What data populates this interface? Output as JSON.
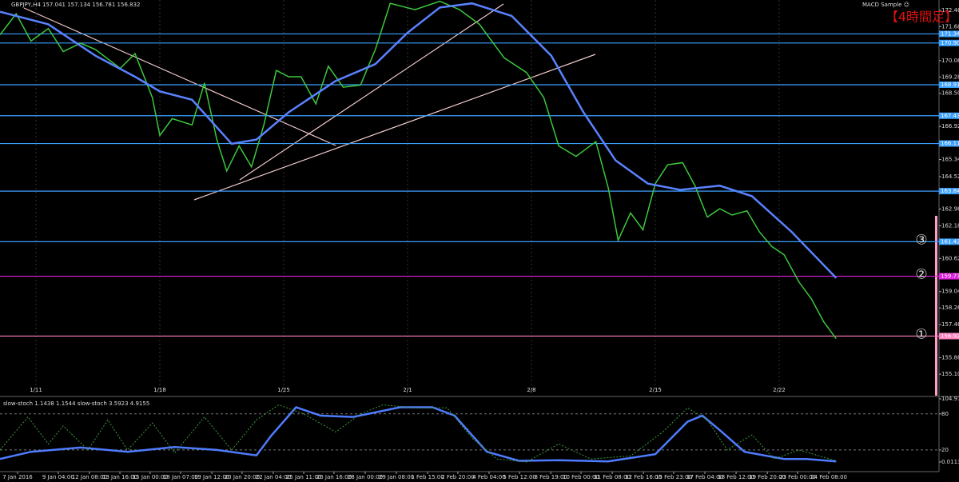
{
  "header": {
    "symbol_info": "GBPJPY,H4 157.041 157.134 156.781 156.832",
    "indicator": "MACD Sample ☺",
    "timeframe": "【4時間足】",
    "stoch_info": "slow-stoch 1.1438 1.1544 slow-stoch 3.5923 4.9155"
  },
  "chart_data": [
    {
      "type": "line",
      "xlim": [
        -1.45,
        36.45
      ],
      "ylim": [
        154.08,
        172.96
      ],
      "xticks": [
        {
          "value": 0,
          "label": "1/11"
        },
        {
          "value": 5,
          "label": "1/18"
        },
        {
          "value": 10,
          "label": "1/25"
        },
        {
          "value": 15,
          "label": "2/1"
        },
        {
          "value": 20,
          "label": "2/8"
        },
        {
          "value": 25,
          "label": "2/15"
        },
        {
          "value": 30,
          "label": "2/22"
        }
      ],
      "yticks": [
        172.468,
        171.688,
        170.868,
        170.068,
        169.288,
        168.508,
        166.928,
        165.348,
        164.528,
        162.988,
        162.188,
        160.628,
        159.048,
        158.268,
        157.468,
        155.888,
        155.108
      ],
      "levels": [
        {
          "value": 171.341,
          "color": "#3aa0ff"
        },
        {
          "value": 170.908,
          "color": "#3aa0ff"
        },
        {
          "value": 168.917,
          "color": "#3aa0ff"
        },
        {
          "value": 167.438,
          "color": "#3aa0ff"
        },
        {
          "value": 166.112,
          "color": "#3aa0ff"
        },
        {
          "value": 163.84,
          "color": "#3aa0ff"
        },
        {
          "value": 161.426,
          "color": "#3aa0ff",
          "tag": "③"
        },
        {
          "value": 159.779,
          "color": "#e020e0",
          "tag": "②"
        },
        {
          "value": 156.923,
          "color": "#ff80c0",
          "tag": "①"
        }
      ],
      "series": [
        {
          "color": "#3cc83c",
          "x": [
            -1.45,
            -0.8,
            -0.2,
            0.5,
            1.1,
            1.8,
            2.4,
            3.4,
            4.0,
            4.7,
            5.0,
            5.5,
            6.3,
            6.8,
            7.3,
            7.7,
            8.2,
            8.7,
            9.2,
            9.7,
            10.2,
            10.7,
            11.3,
            11.8,
            12.4,
            13.1,
            13.7,
            14.3,
            15.3,
            16.3,
            17.1,
            17.9,
            18.9,
            19.8,
            20.5,
            21.1,
            21.8,
            22.6,
            23.1,
            23.5,
            24.0,
            24.5,
            25.0,
            25.5,
            26.1,
            26.6,
            27.1,
            27.6,
            28.1,
            28.7,
            29.2,
            29.7,
            30.2,
            30.8,
            31.3,
            31.8,
            32.3
          ],
          "values": [
            171.3,
            172.3,
            171.0,
            171.6,
            170.5,
            170.9,
            170.6,
            169.7,
            170.4,
            168.3,
            166.5,
            167.3,
            167.0,
            169.0,
            166.3,
            164.8,
            166.0,
            165.0,
            167.0,
            169.6,
            169.3,
            169.3,
            168.0,
            169.8,
            168.8,
            168.9,
            170.6,
            172.8,
            172.5,
            172.9,
            172.5,
            171.8,
            170.2,
            169.5,
            168.3,
            166.0,
            165.5,
            166.2,
            164.0,
            161.5,
            162.8,
            162.0,
            164.2,
            165.1,
            165.2,
            164.1,
            162.6,
            163.0,
            162.7,
            162.9,
            161.9,
            161.2,
            160.8,
            159.5,
            158.7,
            157.6,
            156.8
          ]
        },
        {
          "color": "#5a82ff",
          "x": [
            -1.45,
            0.5,
            2.4,
            4.0,
            5.0,
            6.3,
            7.9,
            8.9,
            10.2,
            12.1,
            13.7,
            15.0,
            16.3,
            17.6,
            19.2,
            20.8,
            22.1,
            23.4,
            24.7,
            26.0,
            27.6,
            28.9,
            30.5,
            32.3
          ],
          "values": [
            172.4,
            171.8,
            170.3,
            169.3,
            168.6,
            168.2,
            166.1,
            166.3,
            167.6,
            169.1,
            169.9,
            171.4,
            172.6,
            172.8,
            172.2,
            170.3,
            167.6,
            165.3,
            164.2,
            163.9,
            164.1,
            163.6,
            161.9,
            159.7
          ]
        }
      ]
    },
    {
      "type": "line",
      "xlim": [
        -1.45,
        36.45
      ],
      "ylim": [
        -16,
        104.9791
      ],
      "yticks": [
        104.9791,
        80,
        20,
        {
          "value": 0.0113,
          "label": "0.0113"
        }
      ],
      "xticks": [
        {
          "value": -0.74,
          "label": "7 Jan 2016"
        },
        {
          "value": 0.9,
          "label": "9 Jan 04:00"
        },
        {
          "value": 2.16,
          "label": "12 Jan 08:00"
        },
        {
          "value": 3.39,
          "label": "13 Jan 16:00"
        },
        {
          "value": 4.61,
          "label": "15 Jan 00:00"
        },
        {
          "value": 5.84,
          "label": "18 Jan 07:00"
        },
        {
          "value": 7.1,
          "label": "19 Jan 12:00"
        },
        {
          "value": 8.32,
          "label": "20 Jan 20:00"
        },
        {
          "value": 9.58,
          "label": "22 Jan 04:00"
        },
        {
          "value": 10.81,
          "label": "25 Jan 11:00"
        },
        {
          "value": 12.03,
          "label": "26 Jan 16:00"
        },
        {
          "value": 13.29,
          "label": "28 Jan 00:00"
        },
        {
          "value": 14.55,
          "label": "29 Jan 08:00"
        },
        {
          "value": 15.81,
          "label": "1 Feb 15:00"
        },
        {
          "value": 17.03,
          "label": "2 Feb 20:00"
        },
        {
          "value": 18.29,
          "label": "4 Feb 04:00"
        },
        {
          "value": 19.52,
          "label": "5 Feb 12:00"
        },
        {
          "value": 20.78,
          "label": "8 Feb 19:00"
        },
        {
          "value": 22.0,
          "label": "10 Feb 00:00"
        },
        {
          "value": 23.26,
          "label": "11 Feb 08:00"
        },
        {
          "value": 24.52,
          "label": "12 Feb 16:00"
        },
        {
          "value": 25.74,
          "label": "15 Feb 23:00"
        },
        {
          "value": 27.0,
          "label": "17 Feb 04:00"
        },
        {
          "value": 28.26,
          "label": "18 Feb 12:00"
        },
        {
          "value": 29.52,
          "label": "19 Feb 20:00"
        },
        {
          "value": 30.74,
          "label": "23 Feb 00:00"
        },
        {
          "value": 32.0,
          "label": "24 Feb 08:00"
        }
      ],
      "series": [
        {
          "color": "#4f7cff",
          "x": [
            -1.45,
            -0.2,
            1.8,
            3.7,
            5.6,
            7.3,
            8.9,
            9.5,
            10.5,
            11.5,
            12.8,
            14.7,
            16.0,
            16.9,
            18.2,
            19.5,
            21.1,
            23.1,
            25.0,
            26.3,
            26.9,
            27.6,
            28.6,
            30.2,
            31.1,
            32.3
          ],
          "values": [
            5,
            17,
            24,
            17,
            25,
            20,
            11,
            44,
            91,
            77,
            75,
            91,
            91,
            77,
            17,
            2,
            3,
            1,
            13,
            67,
            77,
            53,
            17,
            5,
            5,
            1
          ]
        },
        {
          "color": "#3c9c3c",
          "dashed": true,
          "x": [
            -1.45,
            -0.32,
            0.5,
            1.1,
            2.1,
            2.9,
            3.7,
            4.7,
            5.6,
            6.8,
            7.9,
            8.9,
            9.8,
            10.8,
            12.1,
            13.1,
            14.0,
            15.3,
            16.6,
            17.6,
            18.6,
            19.8,
            21.1,
            22.4,
            24.0,
            25.3,
            26.3,
            27.1,
            27.9,
            28.9,
            29.8,
            30.8,
            32.3
          ],
          "values": [
            20,
            75,
            30,
            60,
            20,
            70,
            20,
            65,
            15,
            75,
            20,
            70,
            95,
            80,
            50,
            80,
            95,
            90,
            90,
            40,
            5,
            0,
            30,
            5,
            10,
            50,
            90,
            70,
            20,
            45,
            5,
            20,
            2
          ]
        }
      ]
    }
  ]
}
